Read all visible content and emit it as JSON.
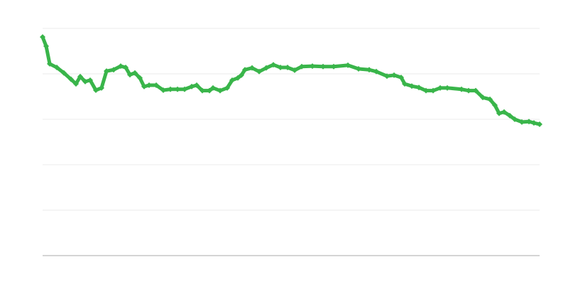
{
  "chart_data": {
    "type": "line",
    "title": "",
    "xlabel": "",
    "ylabel": "",
    "grid": true,
    "marker": "diamond",
    "color": "#39b54a",
    "xlim": [
      0,
      700
    ],
    "ylim": [
      0,
      5
    ],
    "y_gridlines": [
      1,
      2,
      3,
      4,
      5
    ],
    "x": [
      0,
      5,
      10,
      20,
      30,
      40,
      47,
      53,
      60,
      67,
      75,
      83,
      90,
      100,
      110,
      117,
      123,
      130,
      137,
      143,
      150,
      160,
      170,
      180,
      190,
      200,
      210,
      217,
      225,
      235,
      240,
      250,
      260,
      267,
      275,
      280,
      285,
      295,
      305,
      315,
      325,
      335,
      345,
      355,
      365,
      380,
      395,
      410,
      430,
      445,
      460,
      470,
      485,
      495,
      505,
      510,
      520,
      530,
      540,
      550,
      560,
      570,
      590,
      600,
      610,
      620,
      630,
      637,
      643,
      650,
      658,
      665,
      675,
      685,
      692,
      700
    ],
    "series": [
      {
        "values": [
          4.81,
          4.61,
          4.22,
          4.14,
          4.02,
          3.88,
          3.78,
          3.94,
          3.83,
          3.86,
          3.64,
          3.69,
          4.06,
          4.09,
          4.17,
          4.14,
          3.98,
          4.02,
          3.91,
          3.72,
          3.75,
          3.75,
          3.64,
          3.66,
          3.66,
          3.66,
          3.72,
          3.75,
          3.63,
          3.63,
          3.69,
          3.63,
          3.69,
          3.86,
          3.91,
          3.97,
          4.09,
          4.13,
          4.05,
          4.13,
          4.2,
          4.14,
          4.14,
          4.08,
          4.16,
          4.17,
          4.16,
          4.16,
          4.19,
          4.11,
          4.09,
          4.05,
          3.95,
          3.97,
          3.92,
          3.78,
          3.73,
          3.7,
          3.63,
          3.63,
          3.69,
          3.69,
          3.66,
          3.63,
          3.63,
          3.48,
          3.44,
          3.31,
          3.13,
          3.16,
          3.08,
          3.0,
          2.94,
          2.95,
          2.92,
          2.89
        ]
      }
    ]
  }
}
